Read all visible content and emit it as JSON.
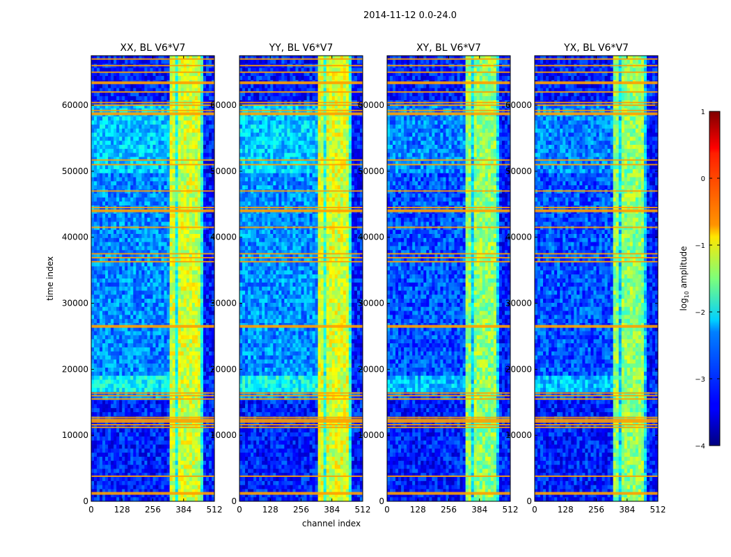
{
  "figure_title": "2014-11-12 0.0-24.0",
  "chart_data": {
    "type": "heatmap",
    "suptitle": "2014-11-12 0.0-24.0",
    "xlabel": "channel index",
    "ylabel": "time index",
    "xlim": [
      0,
      512
    ],
    "ylim": [
      0,
      67500
    ],
    "xticks": [
      0,
      128,
      256,
      384,
      512
    ],
    "yticks": [
      0,
      10000,
      20000,
      30000,
      40000,
      50000,
      60000
    ],
    "colormap": "jet",
    "colorbar": {
      "label": "log10 amplitude",
      "label_base": "log",
      "label_sub": "10",
      "label_rest": " amplitude",
      "range": [
        -4,
        1
      ],
      "ticks": [
        1,
        0,
        -1,
        -2,
        -3,
        -4
      ]
    },
    "panels": [
      {
        "title": "XX, BL V6*V7",
        "level": 0.0
      },
      {
        "title": "YY, BL V6*V7",
        "level": 0.05
      },
      {
        "title": "XY, BL V6*V7",
        "level": -0.55
      },
      {
        "title": "YX, BL V6*V7",
        "level": -0.55
      }
    ],
    "high_channel_band": [
      325,
      470
    ],
    "flag_rows": [
      1200,
      3800,
      11200,
      11600,
      12000,
      12300,
      12700,
      15500,
      16000,
      16400,
      26500,
      36300,
      36900,
      37500,
      41500,
      44000,
      44500,
      47000,
      51000,
      51700,
      58700,
      59200,
      60000,
      60400,
      62000,
      63400,
      65000,
      66000,
      67000
    ]
  }
}
